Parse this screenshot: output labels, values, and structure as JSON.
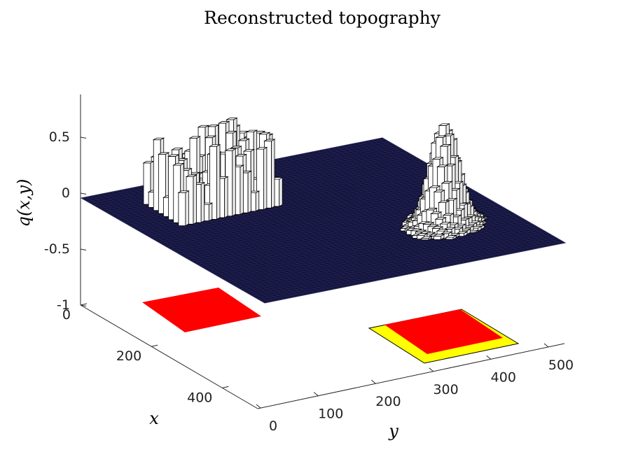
{
  "chart_data": {
    "type": "surface3d",
    "title": "Reconstructed topography",
    "xlabel": "x",
    "ylabel": "y",
    "zlabel": "q(x,y)",
    "xlim": [
      0,
      500
    ],
    "ylim": [
      0,
      512
    ],
    "zlim": [
      -1,
      0.9
    ],
    "x_ticks": [
      0,
      200,
      400
    ],
    "y_ticks": [
      0,
      100,
      200,
      300,
      400,
      500
    ],
    "z_ticks": [
      -1,
      -0.5,
      0,
      0.5
    ],
    "x_tick_labels": [
      "0",
      "200",
      "400"
    ],
    "y_tick_labels": [
      "0",
      "100",
      "200",
      "300",
      "400",
      "500"
    ],
    "z_tick_labels": [
      "-1",
      "-0.5",
      "0",
      "0.5"
    ],
    "grid": false,
    "base_plane_level": 0,
    "features": [
      {
        "name": "block region",
        "shape": "random-height columns",
        "x_range": [
          0,
          150
        ],
        "y_range": [
          0,
          100
        ],
        "z_range": [
          0,
          0.6
        ],
        "projection_color": "#ff0000"
      },
      {
        "name": "cone peak",
        "shape": "gaussian bump",
        "center": [
          230,
          445
        ],
        "peak_z": 0.7,
        "projection_color": "#ff0000",
        "outline_color": "#ffff00"
      }
    ],
    "colors": {
      "surface": "#14143a",
      "columns": "#ffffff",
      "projection": "#ff0000",
      "projection_outline": "#ffff00"
    }
  }
}
